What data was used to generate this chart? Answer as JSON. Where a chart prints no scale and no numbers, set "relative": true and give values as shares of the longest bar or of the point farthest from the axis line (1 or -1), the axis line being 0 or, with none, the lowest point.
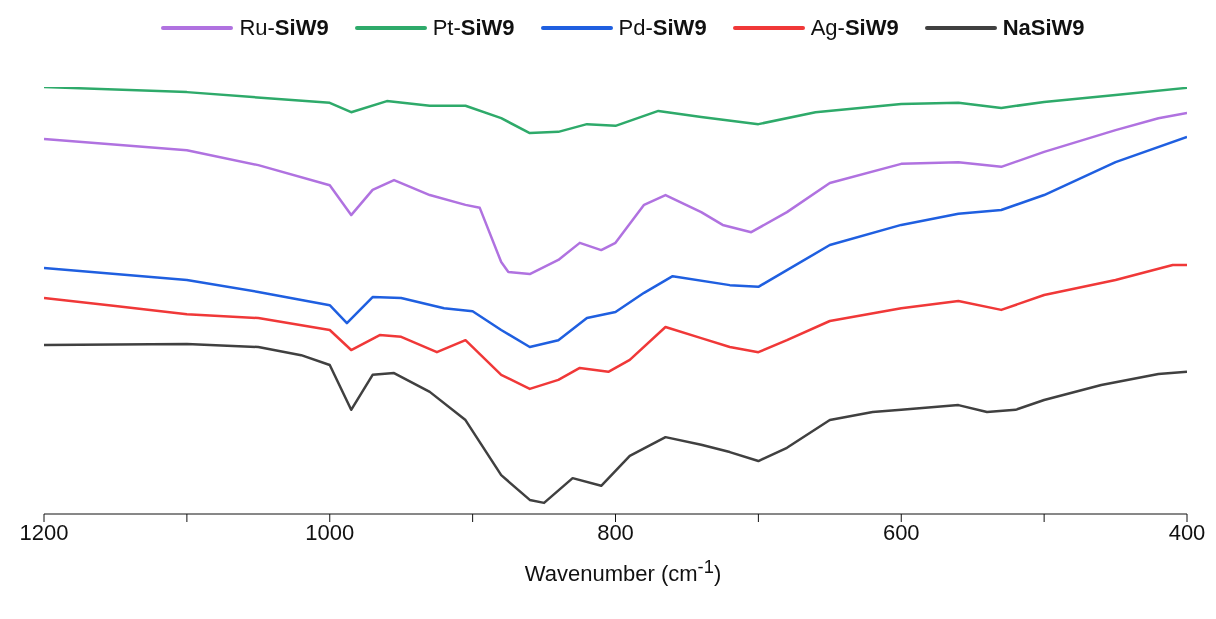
{
  "chart_data": {
    "type": "line",
    "relative": true,
    "xlabel": "Wavenumber (cm$^{-1}$)",
    "xlim": [
      1200,
      400
    ],
    "xticks": [
      1200,
      {
        "value": 1100,
        "label": null
      },
      1000,
      {
        "value": 900,
        "label": null
      },
      800,
      {
        "value": 700,
        "label": null
      },
      600,
      {
        "value": 500,
        "label": null
      },
      400
    ],
    "legend": "top",
    "grid": false,
    "marker": "none",
    "line_style": "solid",
    "series": [
      {
        "name": "Ru-SiW9",
        "color": "#b072e0",
        "x": [
          1200,
          1100,
          1050,
          1000,
          985,
          970,
          955,
          930,
          905,
          895,
          880,
          875,
          860,
          840,
          825,
          810,
          800,
          780,
          765,
          740,
          725,
          705,
          680,
          650,
          600,
          560,
          530,
          500,
          450,
          420,
          400
        ],
        "values": [
          0.878,
          0.852,
          0.817,
          0.77,
          0.7,
          0.759,
          0.782,
          0.747,
          0.724,
          0.717,
          0.59,
          0.567,
          0.562,
          0.595,
          0.635,
          0.618,
          0.635,
          0.724,
          0.747,
          0.707,
          0.677,
          0.66,
          0.707,
          0.775,
          0.82,
          0.824,
          0.813,
          0.848,
          0.899,
          0.927,
          0.939
        ]
      },
      {
        "name": "Pt-SiW9",
        "color": "#2eaa6a",
        "x": [
          1200,
          1100,
          1000,
          985,
          960,
          930,
          905,
          880,
          860,
          840,
          820,
          800,
          770,
          740,
          700,
          660,
          600,
          560,
          530,
          500,
          450,
          400
        ],
        "values": [
          1.0,
          0.988,
          0.963,
          0.941,
          0.967,
          0.956,
          0.956,
          0.927,
          0.892,
          0.895,
          0.913,
          0.909,
          0.944,
          0.93,
          0.913,
          0.941,
          0.96,
          0.963,
          0.951,
          0.965,
          0.981,
          0.998
        ]
      },
      {
        "name": "Pd-SiW9",
        "color": "#1f5fe0",
        "x": [
          1200,
          1100,
          1050,
          1000,
          988,
          970,
          950,
          920,
          900,
          880,
          860,
          840,
          820,
          800,
          780,
          760,
          720,
          700,
          680,
          650,
          600,
          560,
          530,
          500,
          450,
          400
        ],
        "values": [
          0.576,
          0.548,
          0.52,
          0.489,
          0.447,
          0.508,
          0.506,
          0.482,
          0.475,
          0.431,
          0.391,
          0.407,
          0.459,
          0.473,
          0.518,
          0.557,
          0.536,
          0.532,
          0.571,
          0.63,
          0.677,
          0.703,
          0.712,
          0.747,
          0.824,
          0.883
        ]
      },
      {
        "name": "Ag-SiW9",
        "color": "#f03838",
        "x": [
          1200,
          1150,
          1100,
          1050,
          1000,
          985,
          965,
          950,
          925,
          905,
          880,
          860,
          840,
          825,
          805,
          790,
          765,
          740,
          720,
          700,
          680,
          650,
          600,
          560,
          530,
          500,
          450,
          410,
          400
        ],
        "values": [
          0.506,
          0.487,
          0.468,
          0.459,
          0.431,
          0.384,
          0.419,
          0.415,
          0.379,
          0.407,
          0.326,
          0.293,
          0.314,
          0.342,
          0.333,
          0.361,
          0.438,
          0.412,
          0.391,
          0.379,
          0.407,
          0.452,
          0.482,
          0.499,
          0.478,
          0.513,
          0.548,
          0.583,
          0.583
        ]
      },
      {
        "name": "NaSiW9",
        "color": "#404040",
        "x": [
          1200,
          1100,
          1050,
          1020,
          1000,
          985,
          970,
          955,
          930,
          905,
          880,
          860,
          850,
          830,
          810,
          790,
          765,
          740,
          720,
          700,
          680,
          650,
          620,
          600,
          560,
          540,
          520,
          500,
          460,
          420,
          400
        ],
        "values": [
          0.396,
          0.398,
          0.391,
          0.372,
          0.349,
          0.244,
          0.326,
          0.33,
          0.286,
          0.22,
          0.091,
          0.033,
          0.026,
          0.084,
          0.066,
          0.136,
          0.18,
          0.162,
          0.145,
          0.124,
          0.155,
          0.22,
          0.239,
          0.244,
          0.255,
          0.239,
          0.244,
          0.267,
          0.302,
          0.328,
          0.333
        ]
      }
    ]
  }
}
